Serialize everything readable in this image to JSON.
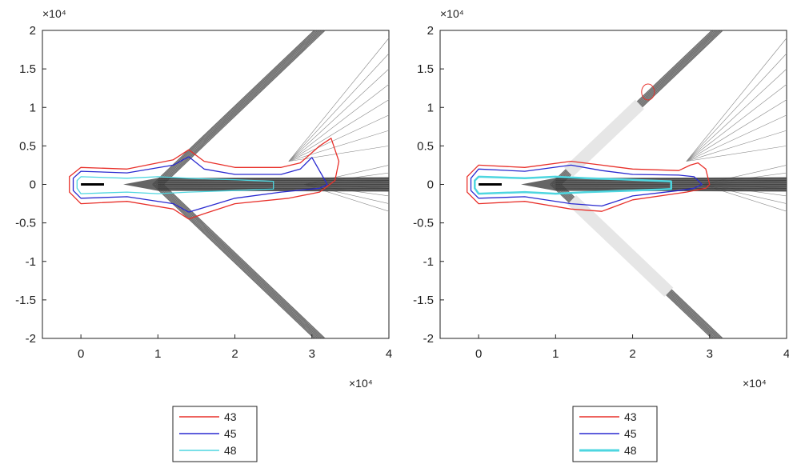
{
  "chart_data": [
    {
      "type": "line",
      "title": "",
      "xlabel": "",
      "ylabel": "",
      "xlim": [
        -0.5,
        4.0
      ],
      "ylim": [
        -2.0,
        2.0
      ],
      "x_exponent_label": "×10⁴",
      "y_exponent_label": "×10⁴",
      "xticks": [
        "0",
        "1",
        "2",
        "3",
        "4"
      ],
      "yticks": [
        "2",
        "1.5",
        "1",
        "0.5",
        "0",
        "-0.5",
        "-1",
        "-1.5",
        "-2"
      ],
      "legend_position": "below",
      "series": [
        {
          "name": "43",
          "color": "#e8302a",
          "x": [
            0.0,
            0.6,
            1.2,
            1.4,
            1.6,
            2.0,
            2.6,
            2.85,
            3.1,
            3.25,
            3.35,
            3.3,
            3.1,
            2.7,
            2.0,
            1.6,
            1.4,
            1.2,
            0.6,
            0.0,
            -0.15,
            -0.15
          ],
          "y": [
            0.22,
            0.2,
            0.32,
            0.45,
            0.3,
            0.22,
            0.22,
            0.28,
            0.5,
            0.6,
            0.3,
            0.05,
            -0.1,
            -0.18,
            -0.25,
            -0.38,
            -0.45,
            -0.32,
            -0.22,
            -0.25,
            -0.1,
            0.1
          ]
        },
        {
          "name": "45",
          "color": "#2a2ad0",
          "x": [
            0.0,
            0.6,
            1.2,
            1.4,
            1.6,
            2.0,
            2.6,
            2.85,
            3.0,
            3.2,
            3.1,
            2.6,
            2.0,
            1.6,
            1.4,
            1.2,
            0.6,
            0.0,
            -0.1,
            -0.1
          ],
          "y": [
            0.17,
            0.15,
            0.25,
            0.36,
            0.2,
            0.13,
            0.13,
            0.2,
            0.35,
            0.0,
            -0.05,
            -0.1,
            -0.18,
            -0.3,
            -0.36,
            -0.25,
            -0.16,
            -0.18,
            -0.08,
            0.08
          ]
        },
        {
          "name": "48",
          "color": "#4ed6e0",
          "x": [
            0.0,
            0.6,
            1.0,
            1.4,
            2.0,
            2.5,
            2.5,
            2.0,
            1.4,
            1.0,
            0.6,
            0.0,
            -0.05,
            -0.05
          ],
          "y": [
            0.1,
            0.08,
            0.1,
            0.08,
            0.06,
            0.04,
            -0.06,
            -0.08,
            -0.1,
            -0.12,
            -0.1,
            -0.12,
            -0.05,
            0.05
          ]
        }
      ],
      "structure": {
        "source_segment": {
          "x": [
            0.0,
            0.3
          ],
          "y": [
            0.0,
            0.0
          ]
        },
        "upper_band": {
          "x": [
            1.0,
            3.1
          ],
          "y": [
            0.0,
            2.0
          ]
        },
        "lower_band": {
          "x": [
            1.0,
            3.1
          ],
          "y": [
            0.0,
            -2.0
          ]
        },
        "wake_start_x": 0.55,
        "fan_origin": {
          "x": 2.7,
          "y": 0.3
        },
        "fan_ends_y": [
          0.5,
          0.7,
          0.9,
          1.1,
          1.3,
          1.5,
          1.7,
          1.9
        ],
        "right_fan_ends_y": [
          0.25,
          0.15,
          0.05,
          -0.05,
          -0.15,
          -0.25,
          -0.35
        ]
      }
    },
    {
      "type": "line",
      "title": "",
      "xlabel": "",
      "ylabel": "",
      "xlim": [
        -0.5,
        4.0
      ],
      "ylim": [
        -2.0,
        2.0
      ],
      "x_exponent_label": "×10⁴",
      "y_exponent_label": "×10⁴",
      "xticks": [
        "0",
        "1",
        "2",
        "3",
        "4"
      ],
      "yticks": [
        "2",
        "1.5",
        "1",
        "0.5",
        "0",
        "-0.5",
        "-1",
        "-1.5",
        "-2"
      ],
      "legend_position": "below",
      "series": [
        {
          "name": "43",
          "color": "#e8302a",
          "x": [
            0.0,
            0.6,
            1.2,
            1.6,
            2.0,
            2.6,
            2.75,
            2.85,
            2.95,
            3.0,
            2.95,
            2.7,
            2.0,
            1.6,
            1.2,
            0.6,
            0.0,
            -0.15,
            -0.15
          ],
          "y": [
            0.25,
            0.22,
            0.3,
            0.25,
            0.2,
            0.18,
            0.25,
            0.28,
            0.2,
            0.0,
            -0.05,
            -0.1,
            -0.2,
            -0.35,
            -0.32,
            -0.22,
            -0.25,
            -0.1,
            0.1
          ]
        },
        {
          "name": "45",
          "color": "#2a2ad0",
          "x": [
            0.0,
            0.6,
            1.2,
            1.6,
            2.0,
            2.6,
            2.8,
            2.9,
            2.8,
            2.6,
            2.0,
            1.6,
            1.2,
            0.6,
            0.0,
            -0.1,
            -0.1
          ],
          "y": [
            0.2,
            0.17,
            0.25,
            0.18,
            0.13,
            0.12,
            0.1,
            0.0,
            -0.05,
            -0.08,
            -0.15,
            -0.28,
            -0.25,
            -0.16,
            -0.18,
            -0.08,
            0.08
          ]
        },
        {
          "name": "48",
          "color": "#4ed6e0",
          "x": [
            0.0,
            0.6,
            1.0,
            1.4,
            2.0,
            2.5,
            2.5,
            2.0,
            1.4,
            1.0,
            0.6,
            0.0,
            -0.05,
            -0.05
          ],
          "y": [
            0.1,
            0.08,
            0.1,
            0.08,
            0.06,
            0.04,
            -0.06,
            -0.08,
            -0.1,
            -0.12,
            -0.1,
            -0.12,
            -0.05,
            0.05
          ]
        }
      ],
      "structure": {
        "source_segment": {
          "x": [
            0.0,
            0.3
          ],
          "y": [
            0.0,
            0.0
          ]
        },
        "upper_band": {
          "x": [
            1.0,
            3.1
          ],
          "y": [
            0.0,
            2.0
          ]
        },
        "lower_band": {
          "x": [
            1.0,
            3.1
          ],
          "y": [
            0.0,
            -2.0
          ]
        },
        "wake_start_x": 0.55,
        "fan_origin": {
          "x": 2.7,
          "y": 0.3
        },
        "fan_ends_y": [
          0.5,
          0.7,
          0.9,
          1.1,
          1.3,
          1.5,
          1.7,
          1.9
        ],
        "right_fan_ends_y": [
          0.25,
          0.15,
          0.05,
          -0.05,
          -0.15,
          -0.25,
          -0.35
        ],
        "marker_loop": {
          "x": 2.2,
          "y": 1.2
        }
      }
    }
  ]
}
